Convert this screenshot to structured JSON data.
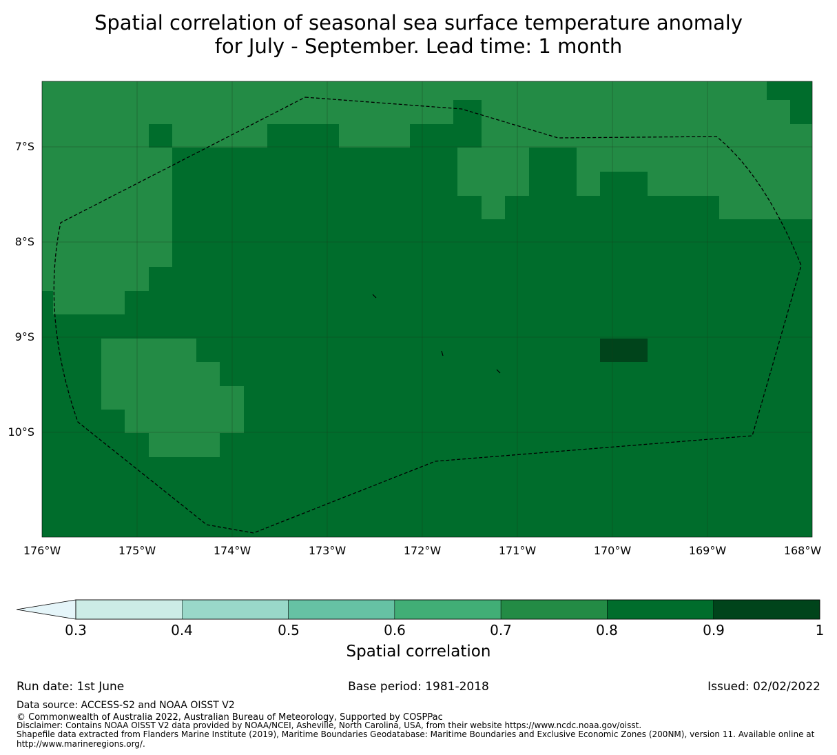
{
  "title": {
    "line1": "Spatial correlation of seasonal sea surface temperature anomaly",
    "line2": "for July - September. Lead time: 1 month"
  },
  "map": {
    "lat_labels": [
      "7°S",
      "8°S",
      "9°S",
      "10°S"
    ],
    "lon_labels": [
      "176°W",
      "175°W",
      "174°W",
      "173°W",
      "172°W",
      "171°W",
      "170°W",
      "169°W",
      "168°W"
    ],
    "colors": {
      "c07": "#238b45",
      "c08": "#006d2c",
      "c09": "#00441b"
    }
  },
  "colorbar": {
    "ticks": [
      "0.3",
      "0.4",
      "0.5",
      "0.6",
      "0.7",
      "0.8",
      "0.9",
      "1"
    ],
    "label": "Spatial correlation",
    "colors": [
      "#e5f5f9",
      "#ccece6",
      "#99d8c9",
      "#66c2a4",
      "#41ae76",
      "#238b45",
      "#006d2c",
      "#00441b"
    ]
  },
  "footer": {
    "run_date": "Run date: 1st June",
    "base_period": "Base period: 1981-2018",
    "issued": "Issued: 02/02/2022",
    "data_source": "Data source: ACCESS-S2 and NOAA OISST V2",
    "copyright": "© Commonwealth of Australia 2022, Australian Bureau of Meteorology, Supported by COSPPac",
    "disclaimer": "Disclaimer: Contains NOAA OISST V2 data provided by NOAA/NCEI, Asheville, North Carolina, USA, from their website https://www.ncdc.noaa.gov/oisst.",
    "shapefile1": "Shapefile data extracted from Flanders Marine Institute (2019), Maritime Boundaries Geodatabase: Maritime Boundaries and Exclusive Economic Zones (200NM), version 11. Available online at",
    "shapefile2": "http://www.marineregions.org/."
  }
}
